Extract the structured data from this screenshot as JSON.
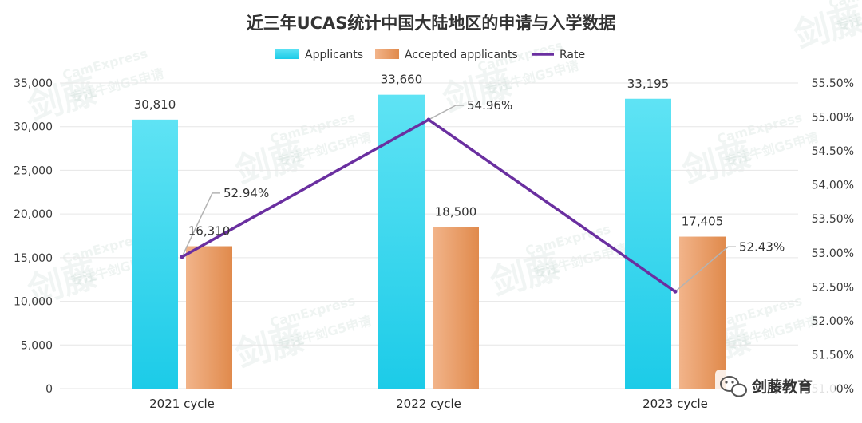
{
  "chart_data": {
    "type": "bar",
    "title": "近三年UCAS统计中国大陆地区的申请与入学数据",
    "categories": [
      "2021 cycle",
      "2022 cycle",
      "2023 cycle"
    ],
    "series": [
      {
        "name": "Applicants",
        "type": "bar",
        "axis": "left",
        "values": [
          30810,
          33660,
          33195
        ],
        "labels": [
          "30,810",
          "33,660",
          "33,195"
        ]
      },
      {
        "name": "Accepted applicants",
        "type": "bar",
        "axis": "left",
        "values": [
          16310,
          18500,
          17405
        ],
        "labels": [
          "16,310",
          "18,500",
          "17,405"
        ]
      },
      {
        "name": "Rate",
        "type": "line",
        "axis": "right",
        "values": [
          52.94,
          54.96,
          52.43
        ],
        "labels": [
          "52.94%",
          "54.96%",
          "52.43%"
        ]
      }
    ],
    "y_left": {
      "min": 0,
      "max": 35000,
      "ticks": [
        "0",
        "5,000",
        "10,000",
        "15,000",
        "20,000",
        "25,000",
        "30,000",
        "35,000"
      ]
    },
    "y_right": {
      "min": 51.0,
      "max": 55.5,
      "ticks": [
        "51.00%",
        "51.50%",
        "52.00%",
        "52.50%",
        "53.00%",
        "53.50%",
        "54.00%",
        "54.50%",
        "55.00%",
        "55.50%"
      ]
    },
    "legend_position": "top",
    "grid": true
  },
  "colors": {
    "applicants_top": "#5fe3f4",
    "applicants_bottom": "#1ccbe8",
    "accepted_left": "#f2b48a",
    "accepted_right": "#e08a4c",
    "rate_line": "#6a2fa0",
    "grid": "#e6e6e6",
    "leader": "#b3b3b3"
  },
  "watermark": {
    "brand_cn": "剑藤",
    "brand_en": "CamExpress",
    "tagline": "专注牛剑G5申请"
  },
  "brand_badge": {
    "icon": "wechat-icon",
    "text": "剑藤教育"
  }
}
